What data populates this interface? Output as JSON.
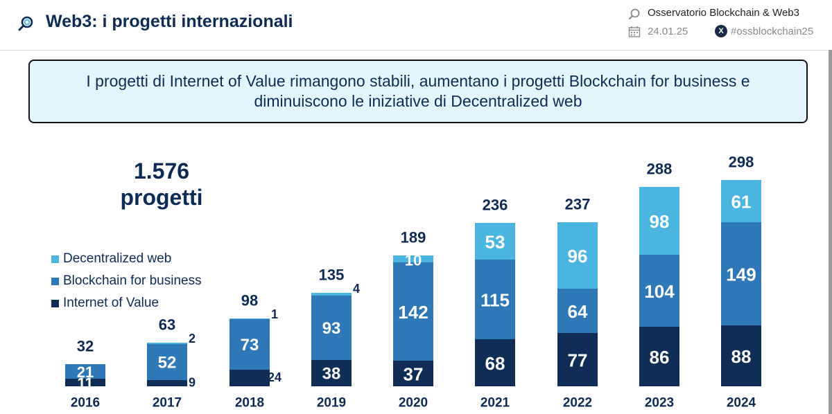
{
  "header": {
    "title": "Web3: i progetti internazionali",
    "org": "Osservatorio Blockchain & Web3",
    "date": "24.01.25",
    "hashtag": "#ossblockchain25",
    "icons": [
      "search-logo-icon",
      "calendar-icon",
      "x-logo-icon"
    ]
  },
  "callout": {
    "text": "I progetti di Internet of Value rimangono stabili, aumentano i progetti Blockchain for business e diminuiscono le iniziative di Decentralized web"
  },
  "summary": {
    "total_number": "1.576",
    "total_label": "progetti"
  },
  "colors": {
    "internet_of_value": "#0f2d55",
    "blockchain_for_business": "#2e78b8",
    "decentralized_web": "#4ab6e0",
    "text": "#0d2b55"
  },
  "chart_data": {
    "type": "bar",
    "stacked": true,
    "categories": [
      "2016",
      "2017",
      "2018",
      "2019",
      "2020",
      "2021",
      "2022",
      "2023",
      "2024"
    ],
    "series": [
      {
        "name": "Internet of Value",
        "values": [
          11,
          9,
          24,
          38,
          37,
          68,
          77,
          86,
          88
        ]
      },
      {
        "name": "Blockchain for business",
        "values": [
          21,
          52,
          73,
          93,
          142,
          115,
          64,
          104,
          149
        ]
      },
      {
        "name": "Decentralized web",
        "values": [
          0,
          2,
          1,
          4,
          10,
          53,
          96,
          98,
          61
        ]
      }
    ],
    "totals": [
      32,
      63,
      98,
      135,
      189,
      236,
      237,
      288,
      298
    ],
    "legend": [
      "Decentralized web",
      "Blockchain for business",
      "Internet of Value"
    ],
    "legend_position": "left",
    "grid": false
  }
}
